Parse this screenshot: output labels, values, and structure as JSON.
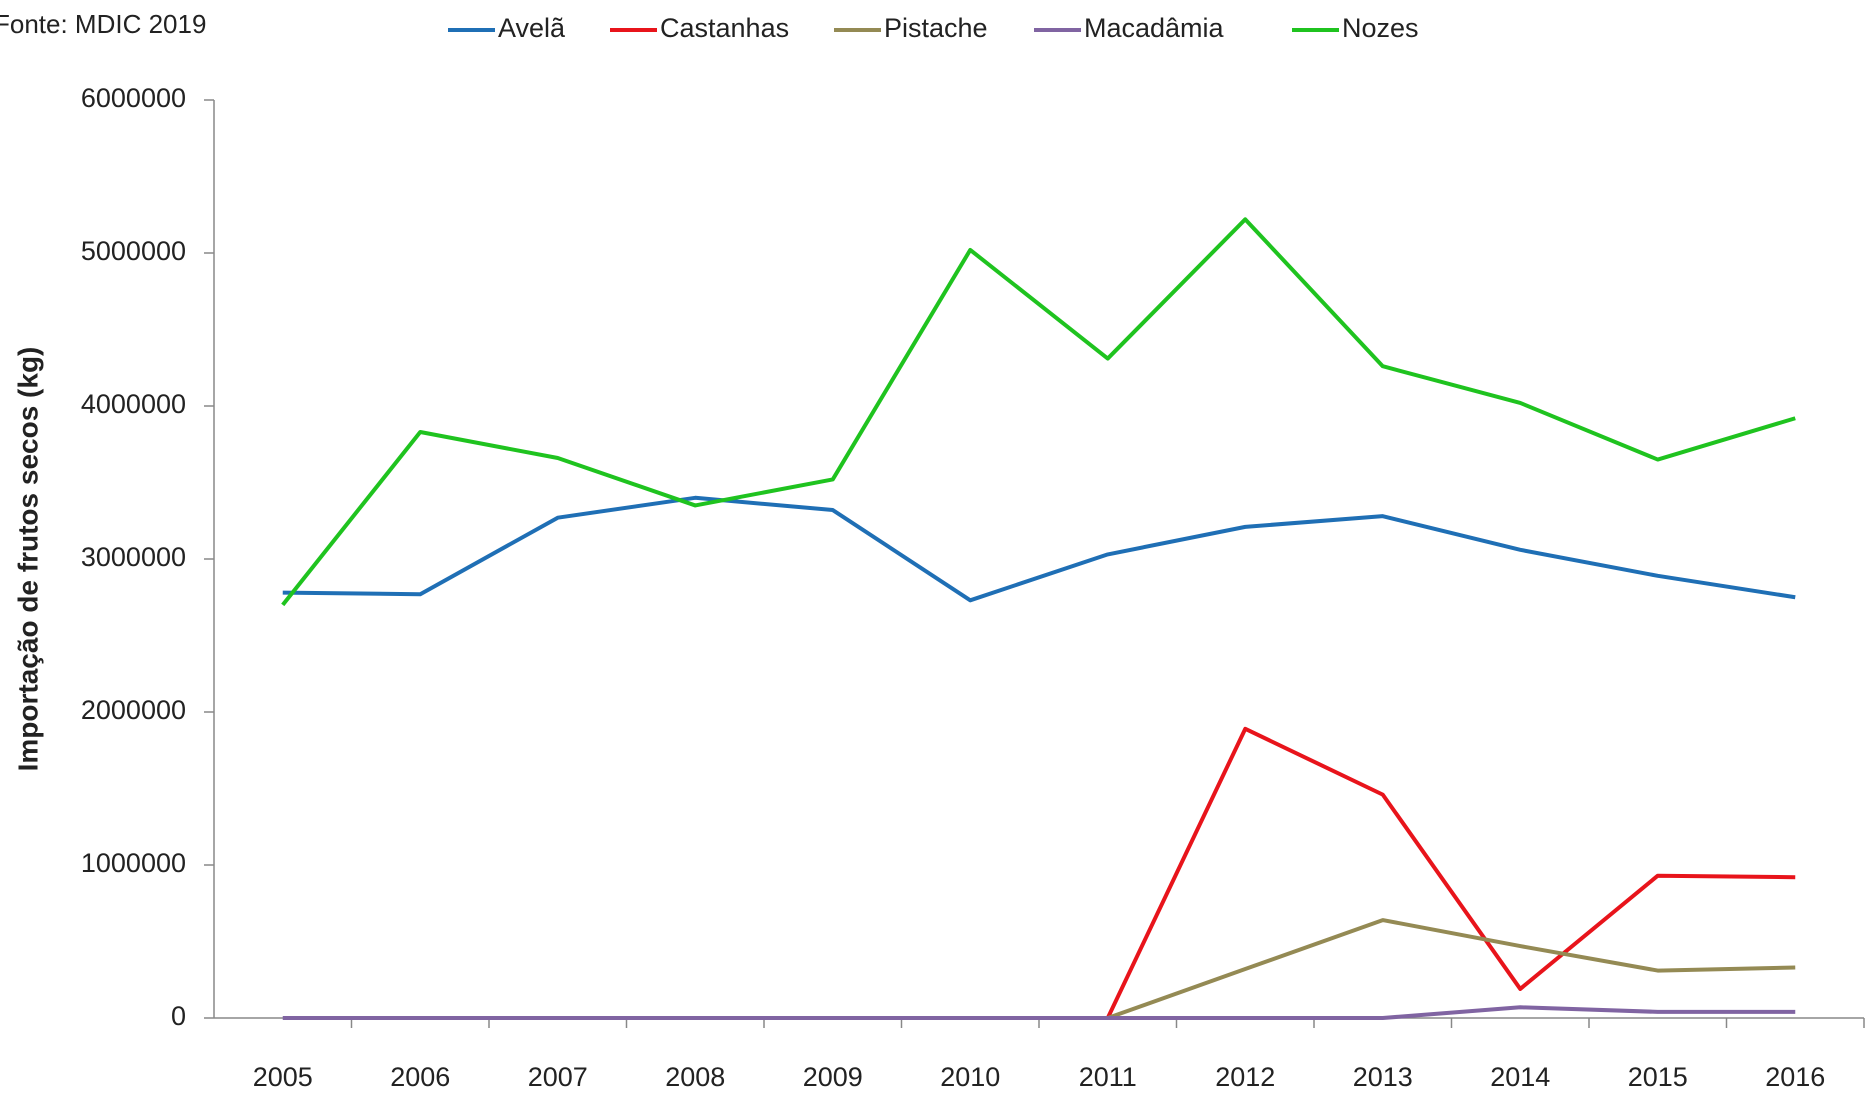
{
  "chart_data": {
    "type": "line",
    "source": "Fonte: MDIC 2019",
    "ylabel": "Importação de frutos secos (kg)",
    "categories": [
      "2005",
      "2006",
      "2007",
      "2008",
      "2009",
      "2010",
      "2011",
      "2012",
      "2013",
      "2014",
      "2015",
      "2016"
    ],
    "series": [
      {
        "name": "Avelã",
        "color": "#1f6fb5",
        "values": [
          2780000,
          2770000,
          3270000,
          3400000,
          3320000,
          2730000,
          3030000,
          3210000,
          3280000,
          3060000,
          2890000,
          2750000
        ]
      },
      {
        "name": "Castanhas",
        "color": "#e8141b",
        "values": [
          null,
          null,
          null,
          null,
          null,
          null,
          0,
          1890000,
          1460000,
          190000,
          930000,
          920000
        ]
      },
      {
        "name": "Pistache",
        "color": "#948a54",
        "values": [
          null,
          null,
          null,
          null,
          null,
          null,
          0,
          320000,
          640000,
          470000,
          310000,
          330000
        ]
      },
      {
        "name": "Macadâmia",
        "color": "#8064a2",
        "values": [
          0,
          0,
          0,
          0,
          0,
          0,
          0,
          0,
          0,
          70000,
          40000,
          40000
        ]
      },
      {
        "name": "Nozes",
        "color": "#1fc31f",
        "values": [
          2700000,
          3830000,
          3660000,
          3350000,
          3520000,
          5020000,
          4310000,
          5220000,
          4260000,
          4020000,
          3650000,
          3920000
        ]
      }
    ],
    "ylim": [
      0,
      6000000
    ],
    "yticks": [
      0,
      1000000,
      2000000,
      3000000,
      4000000,
      5000000,
      6000000
    ],
    "legend": "top"
  }
}
